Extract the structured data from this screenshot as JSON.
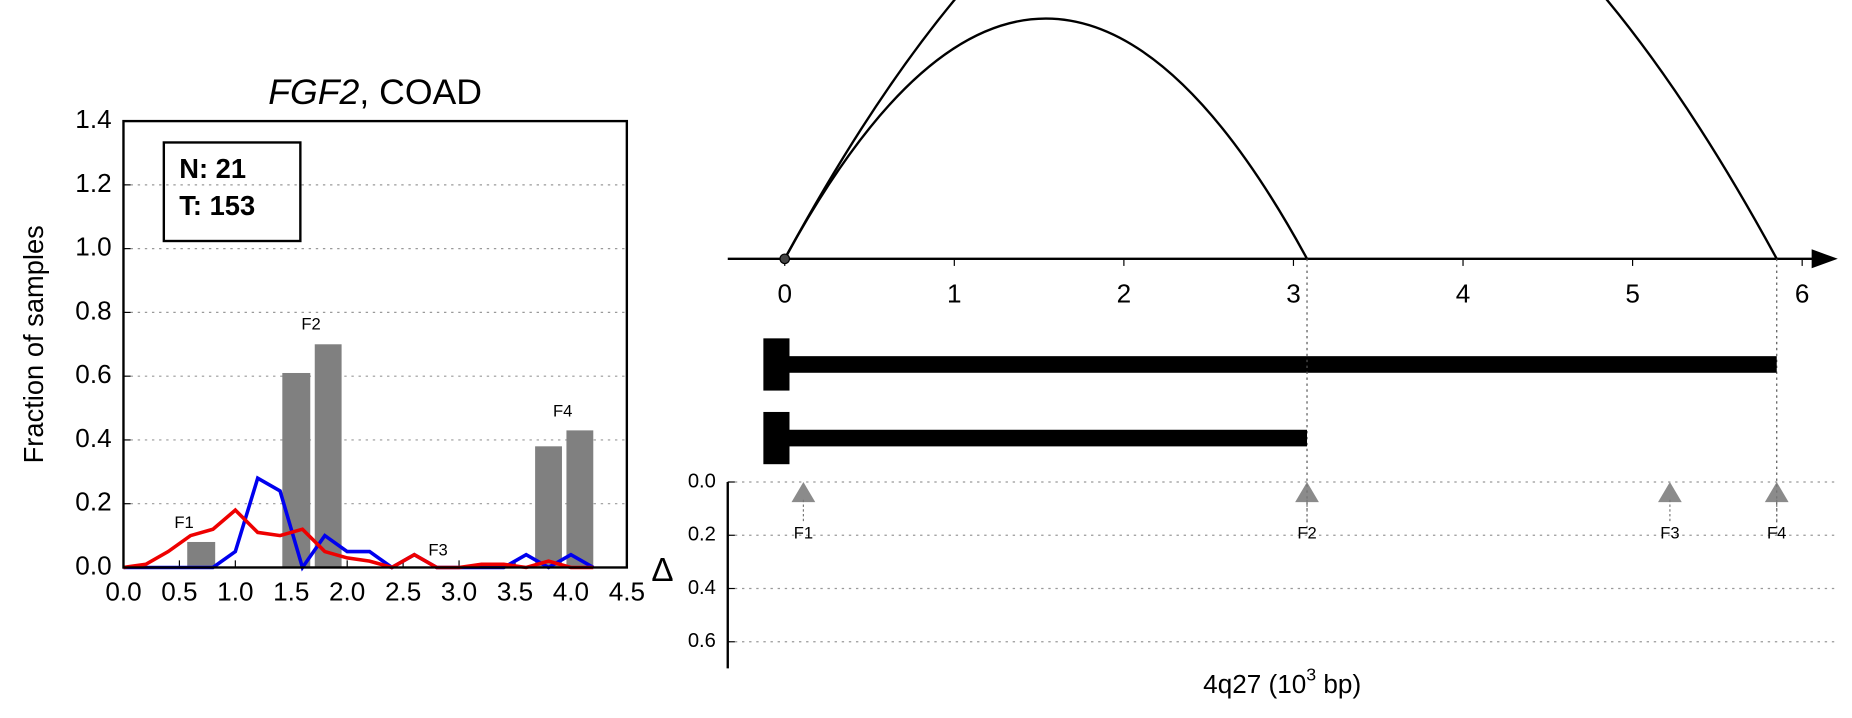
{
  "chart_data": [
    {
      "type": "line",
      "title_parts": [
        "FGF2",
        ", COAD"
      ],
      "annotation": [
        "N: 21",
        "T: 153"
      ],
      "ylabel": "Fraction of samples",
      "xlim": [
        0,
        4.5
      ],
      "xticks": [
        {
          "value": 0,
          "label": "0.0"
        },
        0.5,
        {
          "value": 1,
          "label": "1.0"
        },
        1.5,
        {
          "value": 2,
          "label": "2.0"
        },
        2.5,
        {
          "value": 3,
          "label": "3.0"
        },
        3.5,
        {
          "value": 4,
          "label": "4.0"
        },
        4.5
      ],
      "ylim": [
        0,
        1.4
      ],
      "yticks": [
        {
          "value": 0,
          "label": "0.0"
        },
        0.2,
        0.4,
        0.6,
        0.8,
        {
          "value": 1,
          "label": "1.0"
        },
        1.2,
        1.4
      ],
      "grid": true,
      "bars": {
        "color": "#808080",
        "edges": [
          [
            0.57,
            0.82
          ],
          [
            1.42,
            1.67
          ],
          [
            1.71,
            1.95
          ],
          [
            3.68,
            3.92
          ],
          [
            3.96,
            4.2
          ]
        ],
        "values": [
          0.08,
          0.61,
          0.7,
          0.38,
          0.43
        ]
      },
      "feature_labels": [
        "F1",
        "F2",
        "F3",
        "F4"
      ],
      "x": [
        0,
        0.2,
        0.4,
        0.6,
        0.8,
        1.0,
        1.2,
        1.4,
        1.6,
        1.8,
        2.0,
        2.2,
        2.4,
        2.6,
        2.8,
        3.0,
        3.2,
        3.4,
        3.6,
        3.8,
        4.0,
        4.2
      ],
      "series": [
        {
          "color": "#0000ee",
          "values": [
            0,
            0,
            0,
            0,
            0,
            0.05,
            0.28,
            0.24,
            0,
            0.1,
            0.05,
            0.05,
            0,
            0.04,
            0,
            0,
            0,
            0,
            0.04,
            0,
            0.04,
            0
          ]
        },
        {
          "color": "#ee0000",
          "values": [
            0,
            0.01,
            0.05,
            0.1,
            0.12,
            0.18,
            0.11,
            0.1,
            0.12,
            0.05,
            0.03,
            0.02,
            0,
            0.04,
            0,
            0,
            0.01,
            0.01,
            0,
            0.02,
            0,
            0
          ]
        }
      ]
    },
    {
      "type": "arc",
      "xlim": [
        0,
        6
      ],
      "xticks": [
        0,
        1,
        2,
        3,
        4,
        5,
        6
      ],
      "xlabel_parts": [
        "4q27 (10",
        "3",
        " bp)"
      ],
      "arcs": {
        "start": [
          0,
          0
        ],
        "end": [
          3.08,
          5.85
        ]
      },
      "segments": {
        "start": [
          0,
          0
        ],
        "end": [
          5.85,
          3.08
        ]
      },
      "ylabel": "Δ",
      "ylim": [
        0,
        0.7
      ],
      "yticks": [
        {
          "value": 0,
          "label": "0.0"
        },
        0.2,
        0.4,
        0.6
      ],
      "grid": true,
      "features": {
        "labels": [
          "F1",
          "F2",
          "F3",
          "F4"
        ],
        "x": [
          0.11,
          3.08,
          5.22,
          5.85
        ],
        "values": [
          0.04,
          0.04,
          0.04,
          0.04
        ],
        "color": "#777777"
      }
    }
  ]
}
